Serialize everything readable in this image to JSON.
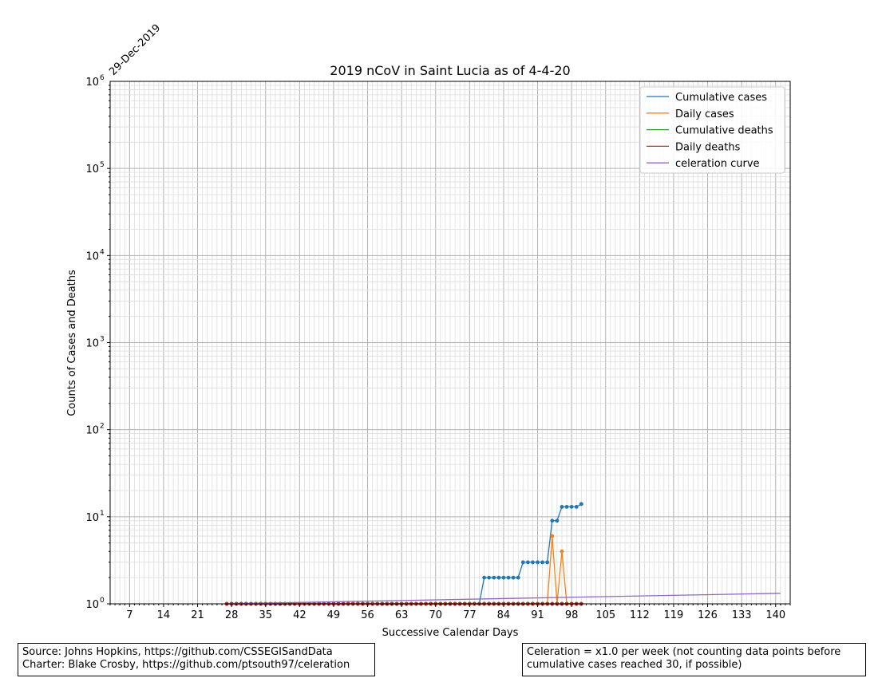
{
  "chart_data": {
    "type": "line",
    "title": "2019 nCoV in Saint Lucia as of 4-4-20",
    "xlabel": "Successive Calendar Days",
    "ylabel": "Counts of Cases and Deaths",
    "start_date_label": "29-Dec-2019",
    "yscale": "log",
    "xlim": [
      3,
      143
    ],
    "ylim": [
      1,
      1000000
    ],
    "x_ticks": [
      7,
      14,
      21,
      28,
      35,
      42,
      49,
      56,
      63,
      70,
      77,
      84,
      91,
      98,
      105,
      112,
      119,
      126,
      133,
      140
    ],
    "y_ticks": [
      {
        "value": 1,
        "base": "10",
        "exp": "0"
      },
      {
        "value": 10,
        "base": "10",
        "exp": "1"
      },
      {
        "value": 100,
        "base": "10",
        "exp": "2"
      },
      {
        "value": 1000,
        "base": "10",
        "exp": "3"
      },
      {
        "value": 10000,
        "base": "10",
        "exp": "4"
      },
      {
        "value": 100000,
        "base": "10",
        "exp": "5"
      },
      {
        "value": 1000000,
        "base": "10",
        "exp": "6"
      }
    ],
    "grid": true,
    "legend_position": "top-right",
    "series": [
      {
        "name": "Cumulative cases",
        "color": "#1f77b4",
        "markers": true,
        "x": [
          27,
          28,
          29,
          30,
          31,
          32,
          33,
          34,
          35,
          36,
          37,
          38,
          39,
          40,
          41,
          42,
          43,
          44,
          45,
          46,
          47,
          48,
          49,
          50,
          51,
          52,
          53,
          54,
          55,
          56,
          57,
          58,
          59,
          60,
          61,
          62,
          63,
          64,
          65,
          66,
          67,
          68,
          69,
          70,
          71,
          72,
          73,
          74,
          75,
          76,
          77,
          78,
          79,
          80,
          81,
          82,
          83,
          84,
          85,
          86,
          87,
          88,
          89,
          90,
          91,
          92,
          93,
          94,
          95,
          96,
          97,
          98,
          99,
          100
        ],
        "y": [
          1,
          1,
          1,
          1,
          1,
          1,
          1,
          1,
          1,
          1,
          1,
          1,
          1,
          1,
          1,
          1,
          1,
          1,
          1,
          1,
          1,
          1,
          1,
          1,
          1,
          1,
          1,
          1,
          1,
          1,
          1,
          1,
          1,
          1,
          1,
          1,
          1,
          1,
          1,
          1,
          1,
          1,
          1,
          1,
          1,
          1,
          1,
          1,
          1,
          1,
          1,
          1,
          1,
          2,
          2,
          2,
          2,
          2,
          2,
          2,
          2,
          3,
          3,
          3,
          3,
          3,
          3,
          9,
          9,
          13,
          13,
          13,
          13,
          14
        ]
      },
      {
        "name": "Daily cases",
        "color": "#ff7f0e",
        "markers": true,
        "x": [
          27,
          28,
          29,
          30,
          31,
          32,
          33,
          34,
          35,
          36,
          37,
          38,
          39,
          40,
          41,
          42,
          43,
          44,
          45,
          46,
          47,
          48,
          49,
          50,
          51,
          52,
          53,
          54,
          55,
          56,
          57,
          58,
          59,
          60,
          61,
          62,
          63,
          64,
          65,
          66,
          67,
          68,
          69,
          70,
          71,
          72,
          73,
          74,
          75,
          76,
          77,
          78,
          79,
          80,
          81,
          82,
          83,
          84,
          85,
          86,
          87,
          88,
          89,
          90,
          91,
          92,
          93,
          94,
          95,
          96,
          97,
          98,
          99,
          100
        ],
        "y": [
          1,
          1,
          1,
          1,
          1,
          1,
          1,
          1,
          1,
          1,
          1,
          1,
          1,
          1,
          1,
          1,
          1,
          1,
          1,
          1,
          1,
          1,
          1,
          1,
          1,
          1,
          1,
          1,
          1,
          1,
          1,
          1,
          1,
          1,
          1,
          1,
          1,
          1,
          1,
          1,
          1,
          1,
          1,
          1,
          1,
          1,
          1,
          1,
          1,
          1,
          1,
          1,
          1,
          1,
          1,
          1,
          1,
          1,
          1,
          1,
          1,
          1,
          1,
          1,
          1,
          1,
          1,
          6,
          1,
          4,
          1,
          1,
          1,
          1
        ]
      },
      {
        "name": "Cumulative deaths",
        "color": "#2ca02c",
        "markers": true,
        "x": [
          27,
          28,
          29,
          30,
          31,
          32,
          33,
          34,
          35,
          36,
          37,
          38,
          39,
          40,
          41,
          42,
          43,
          44,
          45,
          46,
          47,
          48,
          49,
          50,
          51,
          52,
          53,
          54,
          55,
          56,
          57,
          58,
          59,
          60,
          61,
          62,
          63,
          64,
          65,
          66,
          67,
          68,
          69,
          70,
          71,
          72,
          73,
          74,
          75,
          76,
          77,
          78,
          79,
          80,
          81,
          82,
          83,
          84,
          85,
          86,
          87,
          88,
          89,
          90,
          91,
          92,
          93,
          94,
          95,
          96,
          97,
          98,
          99,
          100
        ],
        "y": [
          1,
          1,
          1,
          1,
          1,
          1,
          1,
          1,
          1,
          1,
          1,
          1,
          1,
          1,
          1,
          1,
          1,
          1,
          1,
          1,
          1,
          1,
          1,
          1,
          1,
          1,
          1,
          1,
          1,
          1,
          1,
          1,
          1,
          1,
          1,
          1,
          1,
          1,
          1,
          1,
          1,
          1,
          1,
          1,
          1,
          1,
          1,
          1,
          1,
          1,
          1,
          1,
          1,
          1,
          1,
          1,
          1,
          1,
          1,
          1,
          1,
          1,
          1,
          1,
          1,
          1,
          1,
          1,
          1,
          1,
          1,
          1,
          1,
          1
        ]
      },
      {
        "name": "Daily deaths",
        "color": "#d62728",
        "markers": true,
        "x": [
          27,
          28,
          29,
          30,
          31,
          32,
          33,
          34,
          35,
          36,
          37,
          38,
          39,
          40,
          41,
          42,
          43,
          44,
          45,
          46,
          47,
          48,
          49,
          50,
          51,
          52,
          53,
          54,
          55,
          56,
          57,
          58,
          59,
          60,
          61,
          62,
          63,
          64,
          65,
          66,
          67,
          68,
          69,
          70,
          71,
          72,
          73,
          74,
          75,
          76,
          77,
          78,
          79,
          80,
          81,
          82,
          83,
          84,
          85,
          86,
          87,
          88,
          89,
          90,
          91,
          92,
          93,
          94,
          95,
          96,
          97,
          98,
          99,
          100
        ],
        "y": [
          1,
          1,
          1,
          1,
          1,
          1,
          1,
          1,
          1,
          1,
          1,
          1,
          1,
          1,
          1,
          1,
          1,
          1,
          1,
          1,
          1,
          1,
          1,
          1,
          1,
          1,
          1,
          1,
          1,
          1,
          1,
          1,
          1,
          1,
          1,
          1,
          1,
          1,
          1,
          1,
          1,
          1,
          1,
          1,
          1,
          1,
          1,
          1,
          1,
          1,
          1,
          1,
          1,
          1,
          1,
          1,
          1,
          1,
          1,
          1,
          1,
          1,
          1,
          1,
          1,
          1,
          1,
          1,
          1,
          1,
          1,
          1,
          1,
          1
        ]
      },
      {
        "name": "celeration curve",
        "color": "#9467bd",
        "markers": false,
        "x": [
          27,
          141
        ],
        "y": [
          1,
          1.32
        ]
      }
    ]
  },
  "source_box": {
    "line1": "Source: Johns Hopkins, https://github.com/CSSEGISandData",
    "line2": "Charter: Blake Crosby, https://github.com/ptsouth97/celeration"
  },
  "celeration_box": {
    "text": "Celeration = x1.0 per week (not counting data points before\ncumulative cases reached 30, if possible)"
  }
}
